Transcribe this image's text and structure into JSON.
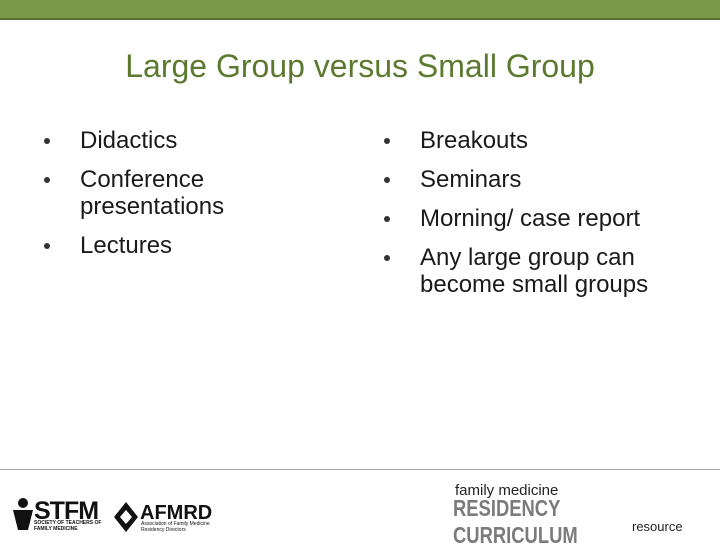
{
  "title": "Large Group versus Small Group",
  "left_bullets": [
    "Didactics",
    "Conference presentations",
    "Lectures"
  ],
  "right_bullets": [
    "Breakouts",
    "Seminars",
    "Morning/ case report",
    "Any large group can become small groups"
  ],
  "footer": {
    "stfm": "STFM",
    "stfm_sub": "SOCIETY OF TEACHERS OF FAMILY MEDICINE",
    "afmrd": "AFMRD",
    "afmrd_sub": "Association of Family Medicine Residency Directors",
    "brand_top": "family medicine",
    "brand_main": "RESIDENCY CURRICULUM",
    "brand_bottom": "resource"
  }
}
